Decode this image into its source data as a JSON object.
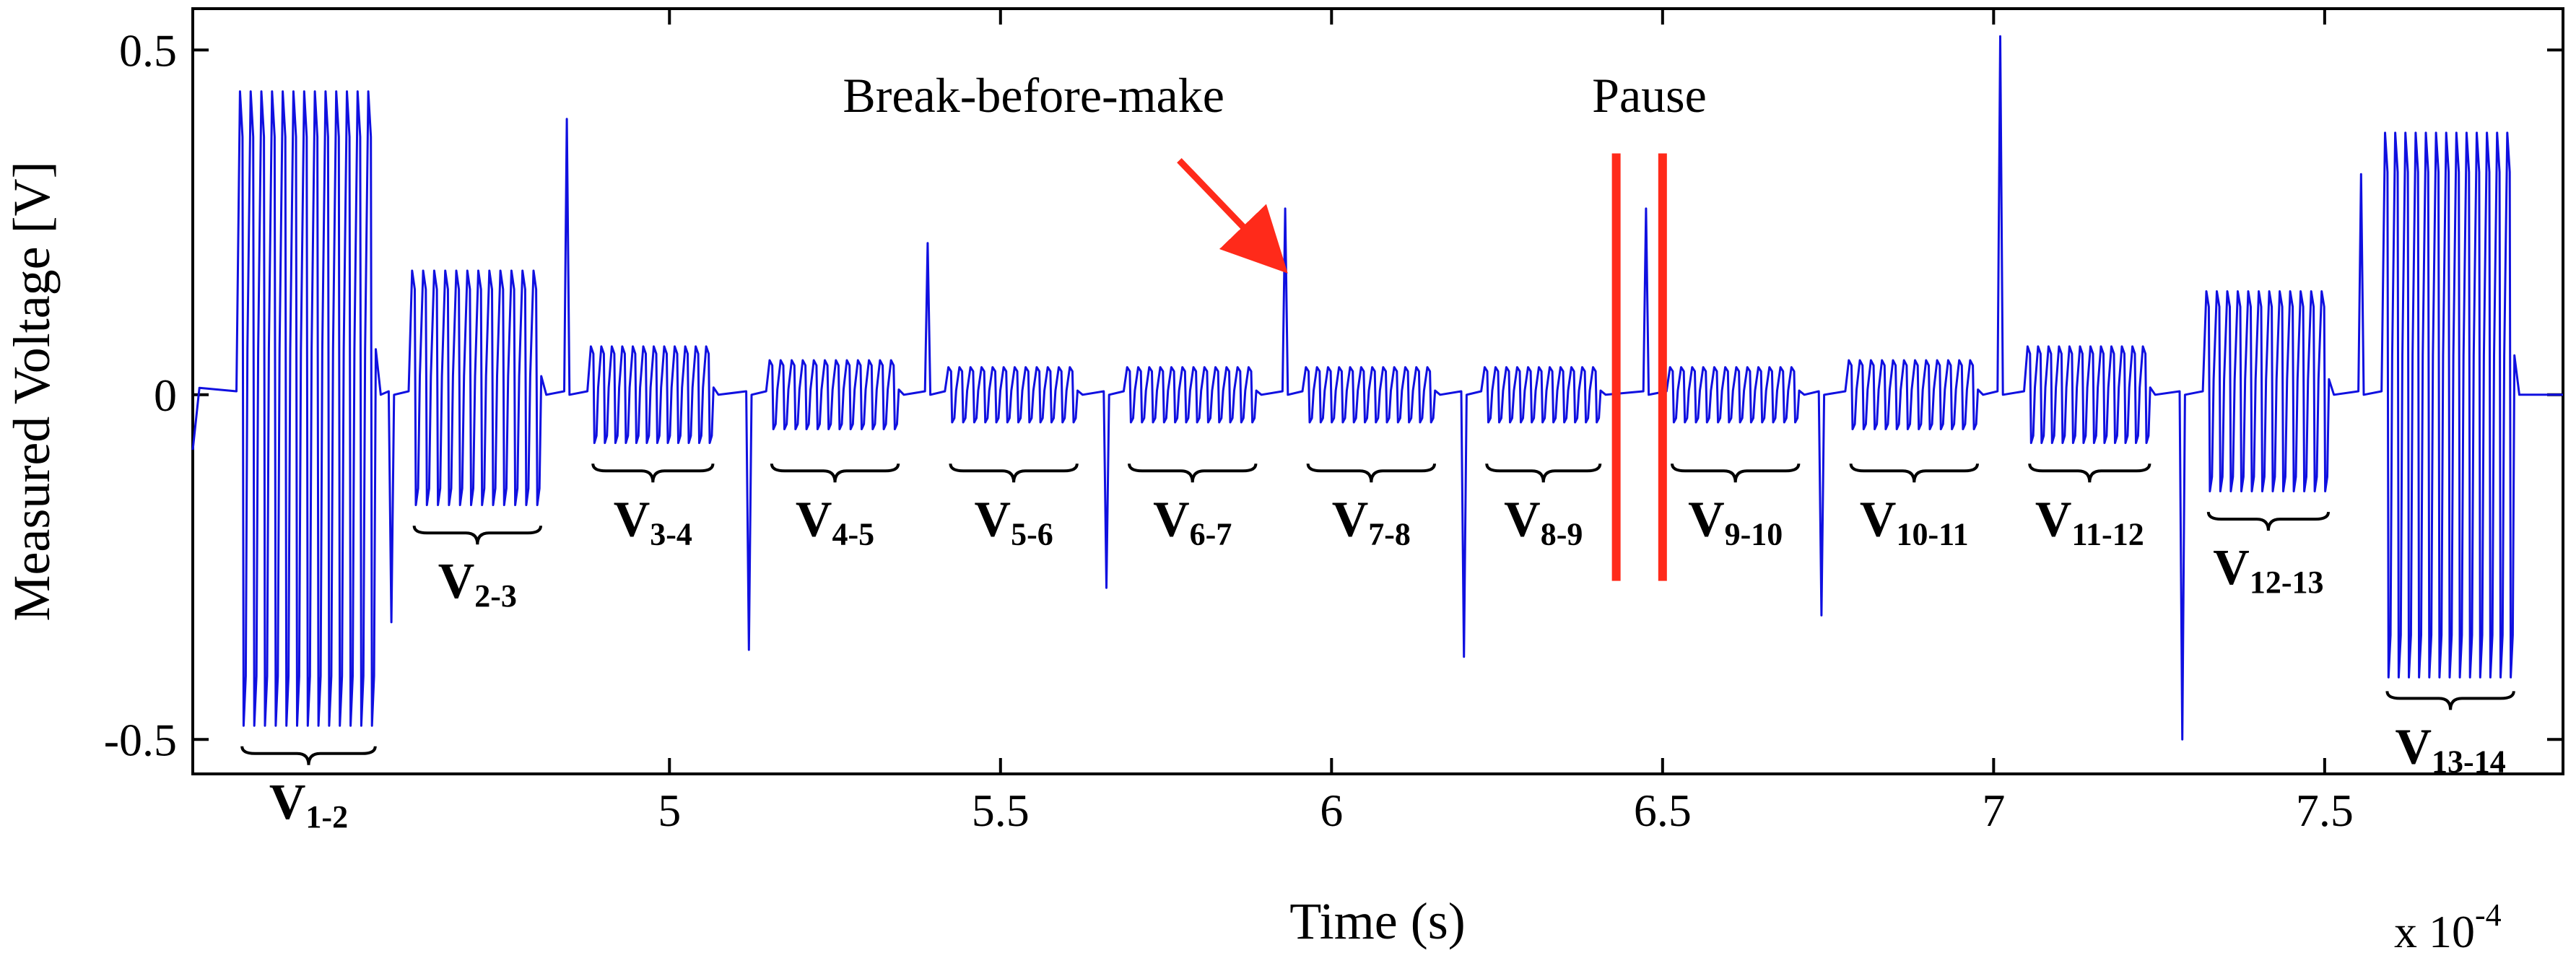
{
  "chart_data": {
    "type": "line",
    "title": "",
    "xlabel": "Time (s)",
    "ylabel": "Measured Voltage [V]",
    "x_scale_label": "x 10",
    "x_scale_exponent": "-4",
    "xlim": [
      4.28,
      7.86
    ],
    "ylim": [
      -0.55,
      0.56
    ],
    "xticks": [
      5,
      5.5,
      6,
      6.5,
      7,
      7.5
    ],
    "xtick_labels": [
      "5",
      "5.5",
      "6",
      "6.5",
      "7",
      "7.5"
    ],
    "yticks": [
      -0.5,
      0,
      0.5
    ],
    "ytick_labels": [
      "-0.5",
      "0",
      "0.5"
    ],
    "grid": false,
    "series": [
      {
        "name": "Measured Voltage",
        "color": "#1010e0",
        "segments": [
          {
            "label": "V",
            "sub": "1-2",
            "x_start": 4.35,
            "x_end": 4.56,
            "pulses": 13,
            "high": 0.44,
            "low": -0.48,
            "brace_side": "below",
            "brace_y": -0.51
          },
          {
            "label": "V",
            "sub": "2-3",
            "x_start": 4.61,
            "x_end": 4.81,
            "pulses": 12,
            "high": 0.18,
            "low": -0.16,
            "brace_side": "below",
            "brace_y": -0.19
          },
          {
            "label": "V",
            "sub": "3-4",
            "x_start": 4.88,
            "x_end": 5.07,
            "pulses": 12,
            "high": 0.07,
            "low": -0.07,
            "brace_side": "below",
            "brace_y": -0.1
          },
          {
            "label": "V",
            "sub": "4-5",
            "x_start": 5.15,
            "x_end": 5.35,
            "pulses": 12,
            "high": 0.05,
            "low": -0.05,
            "brace_side": "below",
            "brace_y": -0.1
          },
          {
            "label": "V",
            "sub": "5-6",
            "x_start": 5.42,
            "x_end": 5.62,
            "pulses": 12,
            "high": 0.04,
            "low": -0.04,
            "brace_side": "below",
            "brace_y": -0.1
          },
          {
            "label": "V",
            "sub": "6-7",
            "x_start": 5.69,
            "x_end": 5.89,
            "pulses": 12,
            "high": 0.04,
            "low": -0.04,
            "brace_side": "below",
            "brace_y": -0.1
          },
          {
            "label": "V",
            "sub": "7-8",
            "x_start": 5.96,
            "x_end": 6.16,
            "pulses": 12,
            "high": 0.04,
            "low": -0.04,
            "brace_side": "below",
            "brace_y": -0.1
          },
          {
            "label": "V",
            "sub": "8-9",
            "x_start": 6.23,
            "x_end": 6.41,
            "pulses": 11,
            "high": 0.04,
            "low": -0.04,
            "brace_side": "below",
            "brace_y": -0.1
          },
          {
            "label": "V",
            "sub": "9-10",
            "x_start": 6.51,
            "x_end": 6.71,
            "pulses": 12,
            "high": 0.04,
            "low": -0.04,
            "brace_side": "below",
            "brace_y": -0.1
          },
          {
            "label": "V",
            "sub": "10-11",
            "x_start": 6.78,
            "x_end": 6.98,
            "pulses": 12,
            "high": 0.05,
            "low": -0.05,
            "brace_side": "below",
            "brace_y": -0.1
          },
          {
            "label": "V",
            "sub": "11-12",
            "x_start": 7.05,
            "x_end": 7.24,
            "pulses": 12,
            "high": 0.07,
            "low": -0.07,
            "brace_side": "below",
            "brace_y": -0.1
          },
          {
            "label": "V",
            "sub": "12-13",
            "x_start": 7.32,
            "x_end": 7.51,
            "pulses": 12,
            "high": 0.15,
            "low": -0.14,
            "brace_side": "below",
            "brace_y": -0.17
          },
          {
            "label": "V",
            "sub": "13-14",
            "x_start": 7.59,
            "x_end": 7.79,
            "pulses": 13,
            "high": 0.38,
            "low": -0.41,
            "brace_side": "below",
            "brace_y": -0.43
          }
        ],
        "spikes": [
          {
            "x": 4.845,
            "y": 0.4
          },
          {
            "x": 5.39,
            "y": 0.22
          },
          {
            "x": 5.93,
            "y": 0.27
          },
          {
            "x": 6.475,
            "y": 0.27
          },
          {
            "x": 7.01,
            "y": 0.52
          },
          {
            "x": 7.555,
            "y": 0.32
          },
          {
            "x": 4.58,
            "y": -0.33
          },
          {
            "x": 5.12,
            "y": -0.37
          },
          {
            "x": 5.66,
            "y": -0.28
          },
          {
            "x": 6.2,
            "y": -0.38
          },
          {
            "x": 6.74,
            "y": -0.32
          },
          {
            "x": 7.285,
            "y": -0.5
          }
        ]
      }
    ],
    "annotations": [
      {
        "text": "Break-before-make",
        "x": 5.55,
        "y": 0.41,
        "arrow_from": [
          5.77,
          0.34
        ],
        "arrow_to": [
          5.9,
          0.21
        ],
        "color": "#ff2a1a"
      },
      {
        "text": "Pause",
        "x": 6.48,
        "y": 0.41
      }
    ],
    "pause_lines": [
      {
        "x": 6.43,
        "y_top": 0.35,
        "y_bottom": -0.27,
        "color": "#ff2a1a"
      },
      {
        "x": 6.5,
        "y_top": 0.35,
        "y_bottom": -0.27,
        "color": "#ff2a1a"
      }
    ]
  }
}
